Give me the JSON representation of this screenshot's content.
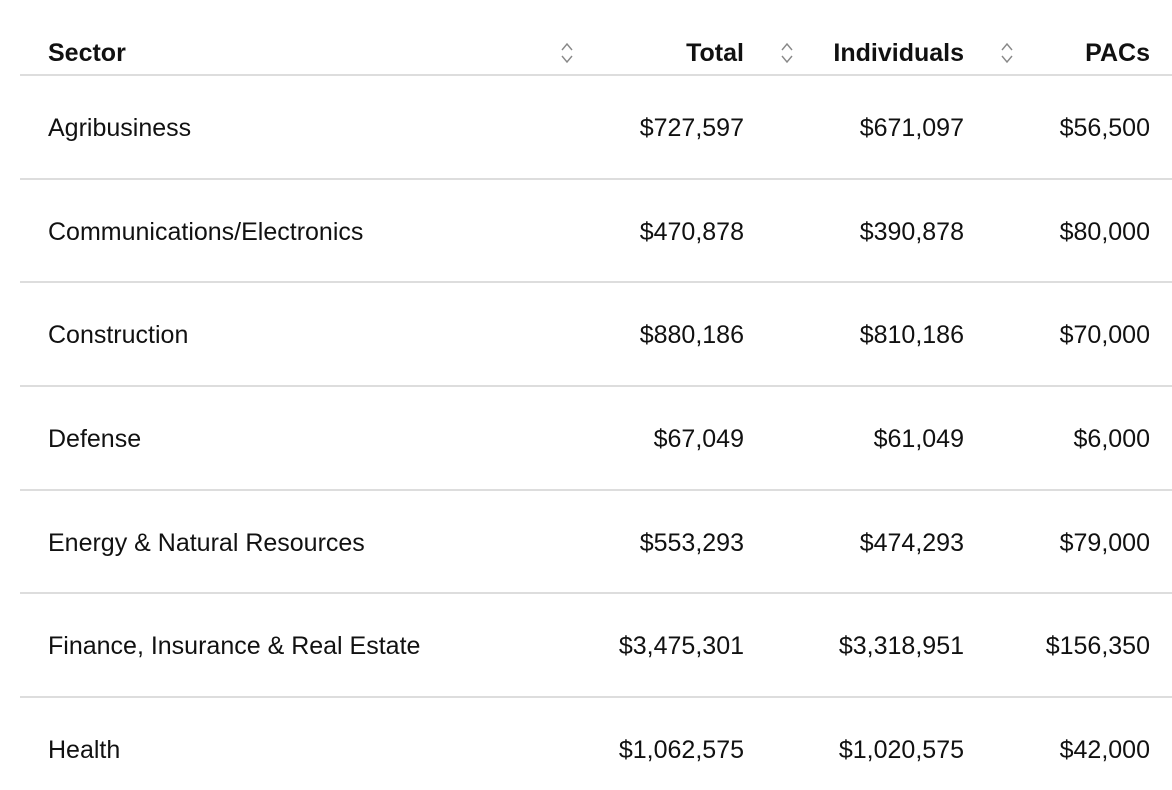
{
  "table": {
    "columns": {
      "sector": "Sector",
      "total": "Total",
      "individuals": "Individuals",
      "pacs": "PACs"
    },
    "rows": [
      {
        "sector": "Agribusiness",
        "total": "$727,597",
        "individuals": "$671,097",
        "pacs": "$56,500"
      },
      {
        "sector": "Communications/Electronics",
        "total": "$470,878",
        "individuals": "$390,878",
        "pacs": "$80,000"
      },
      {
        "sector": "Construction",
        "total": "$880,186",
        "individuals": "$810,186",
        "pacs": "$70,000"
      },
      {
        "sector": "Defense",
        "total": "$67,049",
        "individuals": "$61,049",
        "pacs": "$6,000"
      },
      {
        "sector": "Energy & Natural Resources",
        "total": "$553,293",
        "individuals": "$474,293",
        "pacs": "$79,000"
      },
      {
        "sector": "Finance, Insurance & Real Estate",
        "total": "$3,475,301",
        "individuals": "$3,318,951",
        "pacs": "$156,350"
      },
      {
        "sector": "Health",
        "total": "$1,062,575",
        "individuals": "$1,020,575",
        "pacs": "$42,000"
      }
    ]
  },
  "icons": {
    "sort": "sort-icon"
  },
  "colors": {
    "text": "#111111",
    "divider": "#dddddd",
    "icon": "#888888"
  }
}
